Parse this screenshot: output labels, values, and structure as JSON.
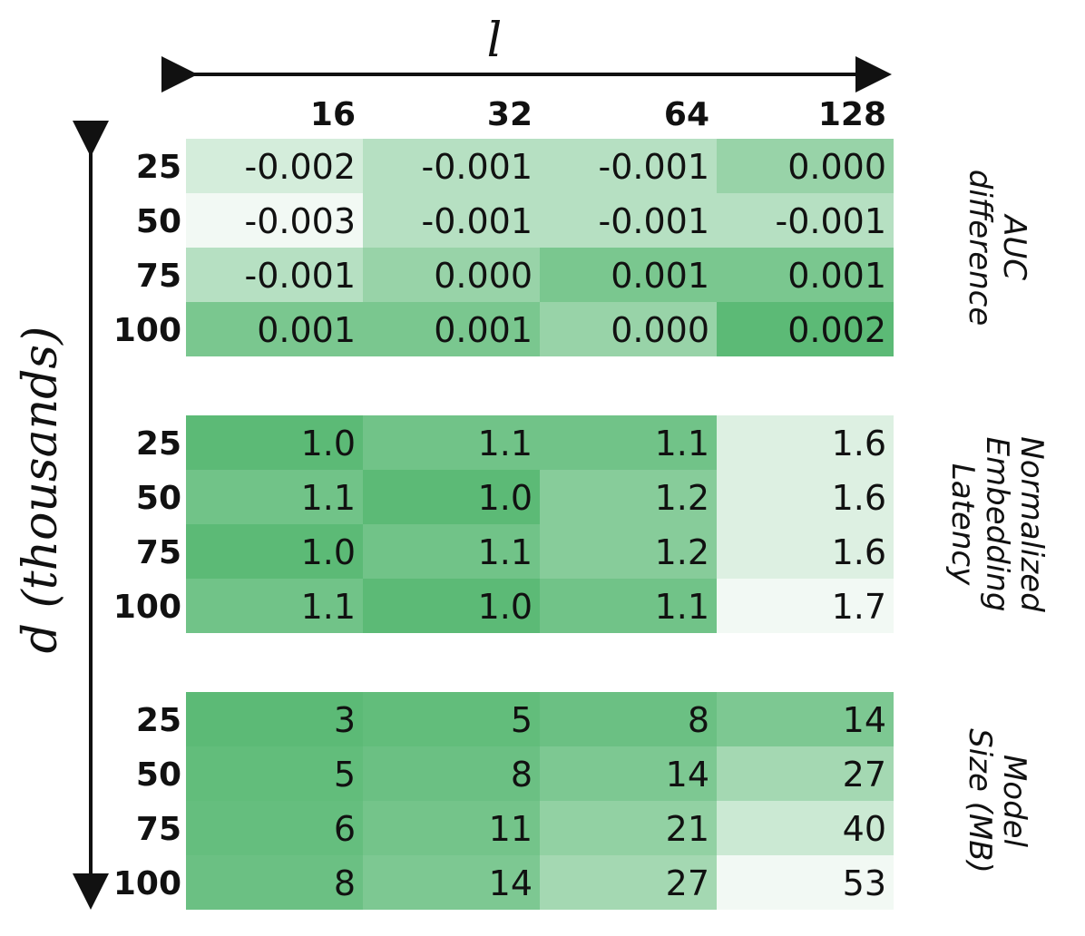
{
  "chart_data": {
    "type": "heatmap",
    "x_axis_label": "l",
    "y_axis_label": "d (thousands)",
    "columns": [
      "16",
      "32",
      "64",
      "128"
    ],
    "rows": [
      "25",
      "50",
      "75",
      "100"
    ],
    "color_low": "#ffffff",
    "color_high": "#5cba76",
    "panels": [
      {
        "name": "AUC difference",
        "label_lines": [
          "AUC",
          "difference"
        ],
        "higher_is_greener": true,
        "values": [
          [
            "-0.002",
            "-0.001",
            "-0.001",
            "0.000"
          ],
          [
            "-0.003",
            "-0.001",
            "-0.001",
            "-0.001"
          ],
          [
            "-0.001",
            "0.000",
            "0.001",
            "0.001"
          ],
          [
            "0.001",
            "0.001",
            "0.000",
            "0.002"
          ]
        ]
      },
      {
        "name": "Normalized Embedding Latency",
        "label_lines": [
          "Normalized",
          "Embedding",
          "Latency"
        ],
        "higher_is_greener": false,
        "values": [
          [
            "1.0",
            "1.1",
            "1.1",
            "1.6"
          ],
          [
            "1.1",
            "1.0",
            "1.2",
            "1.6"
          ],
          [
            "1.0",
            "1.1",
            "1.2",
            "1.6"
          ],
          [
            "1.1",
            "1.0",
            "1.1",
            "1.7"
          ]
        ]
      },
      {
        "name": "Model Size (MB)",
        "label_lines": [
          "Model",
          "Size (MB)"
        ],
        "higher_is_greener": false,
        "values": [
          [
            "3",
            "5",
            "8",
            "14"
          ],
          [
            "5",
            "8",
            "14",
            "27"
          ],
          [
            "6",
            "11",
            "21",
            "40"
          ],
          [
            "8",
            "14",
            "27",
            "53"
          ]
        ]
      }
    ]
  }
}
